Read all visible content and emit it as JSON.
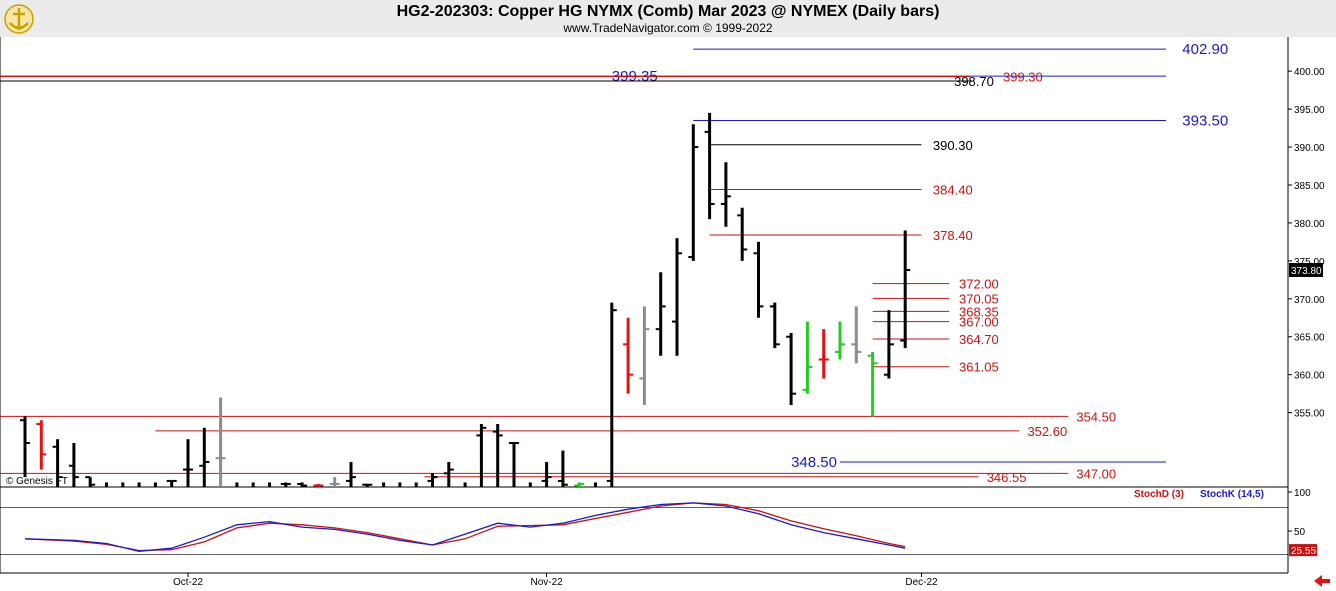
{
  "header": {
    "title": "HG2-202303:  Copper HG NYMX (Comb) Mar 2023 @ NYMEX  (Daily bars)",
    "subtitle": "www.TradeNavigator.com © 1999-2022",
    "watermark": "© Genesis FT"
  },
  "colors": {
    "bar_up": "#000000",
    "bar_down_red": "#e81010",
    "bar_gray": "#8c8c8c",
    "bar_green": "#22cc22",
    "level_red": "#cc1111",
    "level_blue": "#1a1acc",
    "level_black": "#000000",
    "stochD": "#cc1111",
    "stochK": "#1a1acc",
    "header_bg": "#ebebeb",
    "logo": "#c8a000"
  },
  "chart_data": [
    {
      "type": "ohlc",
      "price_axis": {
        "min": 345.2,
        "max": 404.5,
        "ticks": [
          355.0,
          360.0,
          365.0,
          370.0,
          375.0,
          380.0,
          385.0,
          390.0,
          395.0,
          400.0
        ]
      },
      "x_labels": [
        {
          "text": "Oct-22",
          "bar": 10
        },
        {
          "text": "Nov-22",
          "bar": 32
        },
        {
          "text": "Dec-22",
          "bar": 55
        }
      ],
      "last_price": "373.80",
      "bars": [
        {
          "o": 354.0,
          "h": 354.5,
          "l": 346.5,
          "c": 351.0,
          "color": "black"
        },
        {
          "o": 353.5,
          "h": 354.0,
          "l": 347.5,
          "c": 349.5,
          "color": "red"
        },
        {
          "o": 350.5,
          "h": 351.5,
          "l": 345.2,
          "c": 346.5,
          "color": "black"
        },
        {
          "o": 348.0,
          "h": 351.0,
          "l": 345.2,
          "c": 346.5,
          "color": "black"
        },
        {
          "o": 346.5,
          "h": 346.5,
          "l": 345.2,
          "c": 345.5,
          "color": "black"
        },
        {
          "o": null,
          "h": 345.8,
          "l": 345.2,
          "c": null,
          "color": "black"
        },
        {
          "o": null,
          "h": 345.8,
          "l": 345.2,
          "c": null,
          "color": "black"
        },
        {
          "o": null,
          "h": 345.8,
          "l": 345.2,
          "c": null,
          "color": "black"
        },
        {
          "o": null,
          "h": 345.8,
          "l": 345.2,
          "c": null,
          "color": "black"
        },
        {
          "o": 346.0,
          "h": 346.0,
          "l": 345.2,
          "c": 346.0,
          "color": "black"
        },
        {
          "o": 347.5,
          "h": 351.5,
          "l": 345.2,
          "c": 347.5,
          "color": "black"
        },
        {
          "o": 348.0,
          "h": 353.0,
          "l": 345.2,
          "c": 348.5,
          "color": "black"
        },
        {
          "o": 349.0,
          "h": 357.0,
          "l": 345.2,
          "c": 349.0,
          "color": "gray"
        },
        {
          "o": null,
          "h": 345.8,
          "l": 345.2,
          "c": null,
          "color": "black"
        },
        {
          "o": null,
          "h": 345.8,
          "l": 345.2,
          "c": null,
          "color": "black"
        },
        {
          "o": null,
          "h": 345.8,
          "l": 345.2,
          "c": null,
          "color": "black"
        },
        {
          "o": 345.6,
          "h": 345.8,
          "l": 345.2,
          "c": 345.6,
          "color": "black"
        },
        {
          "o": 345.6,
          "h": 345.8,
          "l": 345.2,
          "c": 345.4,
          "color": "black"
        },
        {
          "o": 345.4,
          "h": 345.6,
          "l": 345.2,
          "c": 345.4,
          "color": "red"
        },
        {
          "o": 345.6,
          "h": 346.5,
          "l": 345.2,
          "c": 345.6,
          "color": "gray"
        },
        {
          "o": 346.0,
          "h": 348.5,
          "l": 345.2,
          "c": 346.5,
          "color": "black"
        },
        {
          "o": 345.5,
          "h": 345.6,
          "l": 345.2,
          "c": 345.5,
          "color": "black"
        },
        {
          "o": null,
          "h": 345.8,
          "l": 345.2,
          "c": null,
          "color": "black"
        },
        {
          "o": null,
          "h": 345.8,
          "l": 345.2,
          "c": null,
          "color": "black"
        },
        {
          "o": null,
          "h": 345.8,
          "l": 345.2,
          "c": null,
          "color": "black"
        },
        {
          "o": 346.0,
          "h": 347.0,
          "l": 345.2,
          "c": 346.5,
          "color": "black"
        },
        {
          "o": 347.0,
          "h": 348.5,
          "l": 345.2,
          "c": 347.5,
          "color": "black"
        },
        {
          "o": null,
          "h": 345.8,
          "l": 345.2,
          "c": null,
          "color": "black"
        },
        {
          "o": 352.0,
          "h": 353.5,
          "l": 345.2,
          "c": 353.0,
          "color": "black"
        },
        {
          "o": 352.5,
          "h": 353.5,
          "l": 345.2,
          "c": 352.0,
          "color": "black"
        },
        {
          "o": 351.0,
          "h": 351.0,
          "l": 345.2,
          "c": 351.0,
          "color": "black"
        },
        {
          "o": null,
          "h": 345.8,
          "l": 345.2,
          "c": null,
          "color": "black"
        },
        {
          "o": 346.0,
          "h": 348.5,
          "l": 345.2,
          "c": 346.5,
          "color": "black"
        },
        {
          "o": 346.0,
          "h": 350.0,
          "l": 345.2,
          "c": 345.5,
          "color": "black"
        },
        {
          "o": 345.4,
          "h": 345.8,
          "l": 345.2,
          "c": 345.6,
          "color": "green"
        },
        {
          "o": null,
          "h": 345.8,
          "l": 345.2,
          "c": null,
          "color": "black"
        },
        {
          "o": 346.0,
          "h": 369.5,
          "l": 345.2,
          "c": 368.5,
          "color": "black"
        },
        {
          "o": 364.0,
          "h": 367.5,
          "l": 357.5,
          "c": 360.0,
          "color": "red"
        },
        {
          "o": 359.5,
          "h": 369.0,
          "l": 356.0,
          "c": 366.0,
          "color": "gray"
        },
        {
          "o": 366.0,
          "h": 373.5,
          "l": 362.5,
          "c": 369.0,
          "color": "black"
        },
        {
          "o": 367.0,
          "h": 378.0,
          "l": 362.5,
          "c": 376.0,
          "color": "black"
        },
        {
          "o": 375.5,
          "h": 393.0,
          "l": 375.0,
          "c": 390.0,
          "color": "black"
        },
        {
          "o": 392.0,
          "h": 394.5,
          "l": 380.5,
          "c": 382.5,
          "color": "black"
        },
        {
          "o": 382.5,
          "h": 388.0,
          "l": 379.5,
          "c": 383.5,
          "color": "black"
        },
        {
          "o": 381.0,
          "h": 382.0,
          "l": 375.0,
          "c": 376.5,
          "color": "black"
        },
        {
          "o": 376.0,
          "h": 377.5,
          "l": 367.5,
          "c": 369.0,
          "color": "black"
        },
        {
          "o": 369.0,
          "h": 369.5,
          "l": 363.5,
          "c": 364.0,
          "color": "black"
        },
        {
          "o": 365.0,
          "h": 365.5,
          "l": 356.0,
          "c": 357.5,
          "color": "black"
        },
        {
          "o": 358.0,
          "h": 367.0,
          "l": 357.5,
          "c": 361.0,
          "color": "green"
        },
        {
          "o": 362.0,
          "h": 366.0,
          "l": 359.5,
          "c": 362.0,
          "color": "red"
        },
        {
          "o": 363.0,
          "h": 367.0,
          "l": 362.0,
          "c": 364.0,
          "color": "green"
        },
        {
          "o": 364.0,
          "h": 369.0,
          "l": 361.5,
          "c": 363.0,
          "color": "gray"
        },
        {
          "o": 362.5,
          "h": 363.0,
          "l": 354.5,
          "c": 361.5,
          "color": "green"
        },
        {
          "o": 360.0,
          "h": 368.5,
          "l": 359.5,
          "c": 364.0,
          "color": "black"
        },
        {
          "o": 364.5,
          "h": 379.0,
          "l": 363.5,
          "c": 373.8,
          "color": "black"
        }
      ],
      "levels": [
        {
          "text": "402.90",
          "value": 402.9,
          "color": "blue",
          "x0_bar": 41,
          "x1_bar": 70,
          "label_bar": 71
        },
        {
          "text": "399.35",
          "value": 399.35,
          "color": "blue",
          "x0_bar": -2,
          "x1_bar": 70,
          "label_bar": 36
        },
        {
          "text": "399.30",
          "value": 399.3,
          "color": "red",
          "x0_bar": -2,
          "x1_bar": 58,
          "label_bar": 60
        },
        {
          "text": "398.70",
          "value": 398.7,
          "color": "black",
          "x0_bar": -2,
          "x1_bar": 58,
          "label_bar": 57
        },
        {
          "text": "393.50",
          "value": 393.5,
          "color": "blue",
          "x0_bar": 41,
          "x1_bar": 70,
          "label_bar": 71
        },
        {
          "text": "390.30",
          "value": 390.3,
          "color": "black",
          "x0_bar": 42,
          "x1_bar": 55,
          "label_bar": 55.7
        },
        {
          "text": "384.40",
          "value": 384.4,
          "color": "red",
          "x0_bar": 42,
          "x1_bar": 55,
          "label_bar": 55.7
        },
        {
          "text": "378.40",
          "value": 378.4,
          "color": "red",
          "x0_bar": 42,
          "x1_bar": 55,
          "label_bar": 55.7
        },
        {
          "text": "372.00",
          "value": 372.0,
          "color": "red",
          "x0_bar": 52,
          "x1_bar": 56.7,
          "label_bar": 57.3
        },
        {
          "text": "370.05",
          "value": 370.05,
          "color": "red",
          "x0_bar": 52,
          "x1_bar": 56.7,
          "label_bar": 57.3
        },
        {
          "text": "368.35",
          "value": 368.35,
          "color": "red",
          "x0_bar": 52,
          "x1_bar": 56.7,
          "label_bar": 57.3
        },
        {
          "text": "367.00",
          "value": 367.0,
          "color": "red",
          "x0_bar": 52,
          "x1_bar": 56.7,
          "label_bar": 57.3
        },
        {
          "text": "364.70",
          "value": 364.7,
          "color": "red",
          "x0_bar": 52,
          "x1_bar": 56.7,
          "label_bar": 57.3
        },
        {
          "text": "361.05",
          "value": 361.05,
          "color": "red",
          "x0_bar": 52,
          "x1_bar": 56.7,
          "label_bar": 57.3
        },
        {
          "text": "354.50",
          "value": 354.5,
          "color": "red",
          "x0_bar": -2,
          "x1_bar": 64,
          "label_bar": 64.5
        },
        {
          "text": "352.60",
          "value": 352.6,
          "color": "red",
          "x0_bar": 8,
          "x1_bar": 61,
          "label_bar": 61.5
        },
        {
          "text": "348.50",
          "value": 348.5,
          "color": "blue",
          "x0_bar": 50,
          "x1_bar": 70,
          "label_bar": 47
        },
        {
          "text": "347.00",
          "value": 347.0,
          "color": "red",
          "x0_bar": -2,
          "x1_bar": 64,
          "label_bar": 64.5
        },
        {
          "text": "346.55",
          "value": 346.55,
          "color": "red",
          "x0_bar": 24.5,
          "x1_bar": 58.5,
          "label_bar": 59
        }
      ]
    },
    {
      "type": "line",
      "ylim": [
        0,
        100
      ],
      "ticks": [
        50,
        100
      ],
      "last_value": "25.55",
      "legend": [
        {
          "name": "StochD (3)",
          "color": "red"
        },
        {
          "name": "StochK (14,5)",
          "color": "blue"
        }
      ],
      "series": [
        {
          "name": "StochK (14,5)",
          "color": "blue",
          "points": [
            [
              0,
              40
            ],
            [
              3,
              38
            ],
            [
              5,
              34
            ],
            [
              7,
              24
            ],
            [
              9,
              28
            ],
            [
              11,
              42
            ],
            [
              13,
              58
            ],
            [
              15,
              62
            ],
            [
              17,
              55
            ],
            [
              19,
              52
            ],
            [
              21,
              46
            ],
            [
              23,
              38
            ],
            [
              25,
              32
            ],
            [
              27,
              46
            ],
            [
              29,
              60
            ],
            [
              31,
              55
            ],
            [
              33,
              60
            ],
            [
              35,
              70
            ],
            [
              37,
              78
            ],
            [
              39,
              84
            ],
            [
              41,
              86
            ],
            [
              43,
              82
            ],
            [
              45,
              72
            ],
            [
              47,
              58
            ],
            [
              49,
              48
            ],
            [
              51,
              40
            ],
            [
              53,
              32
            ],
            [
              54,
              28
            ]
          ]
        },
        {
          "name": "StochD (3)",
          "color": "red",
          "points": [
            [
              0,
              40
            ],
            [
              3,
              37
            ],
            [
              5,
              33
            ],
            [
              7,
              25
            ],
            [
              9,
              26
            ],
            [
              11,
              36
            ],
            [
              13,
              54
            ],
            [
              15,
              60
            ],
            [
              17,
              58
            ],
            [
              19,
              54
            ],
            [
              21,
              48
            ],
            [
              23,
              40
            ],
            [
              25,
              32
            ],
            [
              27,
              40
            ],
            [
              29,
              56
            ],
            [
              31,
              57
            ],
            [
              33,
              58
            ],
            [
              35,
              66
            ],
            [
              37,
              74
            ],
            [
              39,
              82
            ],
            [
              41,
              86
            ],
            [
              43,
              84
            ],
            [
              45,
              76
            ],
            [
              47,
              63
            ],
            [
              49,
              53
            ],
            [
              51,
              44
            ],
            [
              53,
              34
            ],
            [
              54,
              30
            ]
          ]
        }
      ]
    }
  ]
}
